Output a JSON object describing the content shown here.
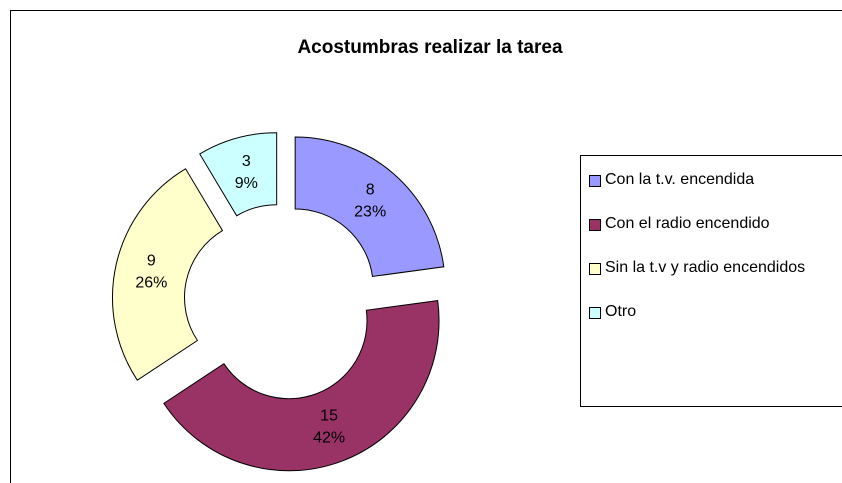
{
  "chart_data": {
    "type": "donut",
    "title": "Acostumbras realizar la tarea",
    "categories": [
      "Con la t.v. encendida",
      "Con el radio encendido",
      "Sin la t.v y radio encendidos",
      "Otro"
    ],
    "values": [
      8,
      15,
      9,
      3
    ],
    "percentages": [
      23,
      42,
      26,
      9
    ],
    "percentage_labels": [
      "23%",
      "42%",
      "26%",
      "9%"
    ],
    "colors": [
      "#9999ff",
      "#993366",
      "#ffffcc",
      "#ccffff"
    ],
    "legend": "right"
  }
}
